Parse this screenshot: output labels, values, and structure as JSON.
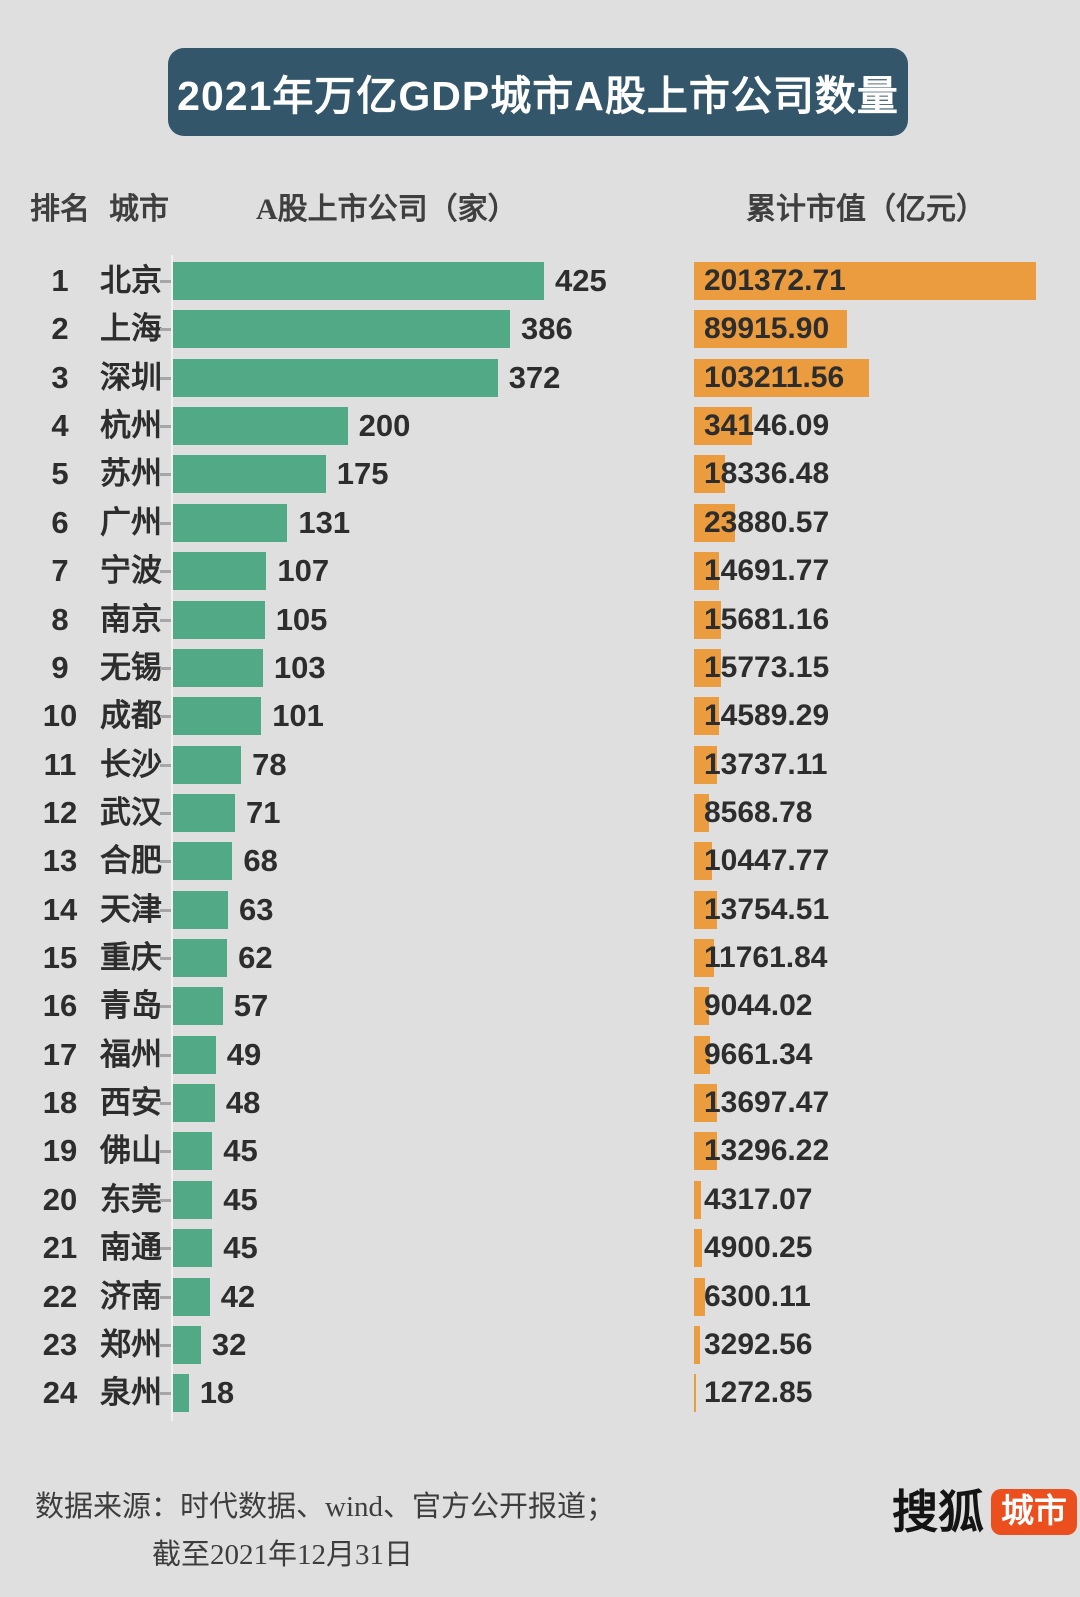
{
  "title": "2021年万亿GDP城市A股上市公司数量",
  "columns": {
    "rank": "排名",
    "city": "城市",
    "companies": "A股上市公司（家）",
    "market_value": "累计市值（亿元）"
  },
  "rows": [
    {
      "rank": 1,
      "city": "北京",
      "companies": 425,
      "market_value": "201372.71"
    },
    {
      "rank": 2,
      "city": "上海",
      "companies": 386,
      "market_value": "89915.90"
    },
    {
      "rank": 3,
      "city": "深圳",
      "companies": 372,
      "market_value": "103211.56"
    },
    {
      "rank": 4,
      "city": "杭州",
      "companies": 200,
      "market_value": "34146.09"
    },
    {
      "rank": 5,
      "city": "苏州",
      "companies": 175,
      "market_value": "18336.48"
    },
    {
      "rank": 6,
      "city": "广州",
      "companies": 131,
      "market_value": "23880.57"
    },
    {
      "rank": 7,
      "city": "宁波",
      "companies": 107,
      "market_value": "14691.77"
    },
    {
      "rank": 8,
      "city": "南京",
      "companies": 105,
      "market_value": "15681.16"
    },
    {
      "rank": 9,
      "city": "无锡",
      "companies": 103,
      "market_value": "15773.15"
    },
    {
      "rank": 10,
      "city": "成都",
      "companies": 101,
      "market_value": "14589.29"
    },
    {
      "rank": 11,
      "city": "长沙",
      "companies": 78,
      "market_value": "13737.11"
    },
    {
      "rank": 12,
      "city": "武汉",
      "companies": 71,
      "market_value": "8568.78"
    },
    {
      "rank": 13,
      "city": "合肥",
      "companies": 68,
      "market_value": "10447.77"
    },
    {
      "rank": 14,
      "city": "天津",
      "companies": 63,
      "market_value": "13754.51"
    },
    {
      "rank": 15,
      "city": "重庆",
      "companies": 62,
      "market_value": "11761.84"
    },
    {
      "rank": 16,
      "city": "青岛",
      "companies": 57,
      "market_value": "9044.02"
    },
    {
      "rank": 17,
      "city": "福州",
      "companies": 49,
      "market_value": "9661.34"
    },
    {
      "rank": 18,
      "city": "西安",
      "companies": 48,
      "market_value": "13697.47"
    },
    {
      "rank": 19,
      "city": "佛山",
      "companies": 45,
      "market_value": "13296.22"
    },
    {
      "rank": 20,
      "city": "东莞",
      "companies": 45,
      "market_value": "4317.07"
    },
    {
      "rank": 21,
      "city": "南通",
      "companies": 45,
      "market_value": "4900.25"
    },
    {
      "rank": 22,
      "city": "济南",
      "companies": 42,
      "market_value": "6300.11"
    },
    {
      "rank": 23,
      "city": "郑州",
      "companies": 32,
      "market_value": "3292.56"
    },
    {
      "rank": 24,
      "city": "泉州",
      "companies": 18,
      "market_value": "1272.85"
    }
  ],
  "footer": {
    "source_line1": "数据来源：时代数据、wind、官方公开报道；",
    "source_line2": "截至2021年12月31日",
    "logo_text": "搜狐",
    "logo_badge": "城市"
  },
  "colors": {
    "background": "#dfdfdf",
    "title_banner": "#33566b",
    "companies_bar": "#52a985",
    "market_value_bar": "#eb9c3e",
    "logo_badge": "#ec4f1e",
    "text_dark": "#2d2d2d"
  },
  "chart_data": {
    "type": "bar",
    "orientation": "horizontal",
    "title": "2021年万亿GDP城市A股上市公司数量",
    "categories": [
      "北京",
      "上海",
      "深圳",
      "杭州",
      "苏州",
      "广州",
      "宁波",
      "南京",
      "无锡",
      "成都",
      "长沙",
      "武汉",
      "合肥",
      "天津",
      "重庆",
      "青岛",
      "福州",
      "西安",
      "佛山",
      "东莞",
      "南通",
      "济南",
      "郑州",
      "泉州"
    ],
    "series": [
      {
        "name": "A股上市公司（家）",
        "color": "#52a985",
        "values": [
          425,
          386,
          372,
          200,
          175,
          131,
          107,
          105,
          103,
          101,
          78,
          71,
          68,
          63,
          62,
          57,
          49,
          48,
          45,
          45,
          45,
          42,
          32,
          18
        ],
        "xlim": [
          0,
          425
        ]
      },
      {
        "name": "累计市值（亿元）",
        "color": "#eb9c3e",
        "values": [
          201372.71,
          89915.9,
          103211.56,
          34146.09,
          18336.48,
          23880.57,
          14691.77,
          15681.16,
          15773.15,
          14589.29,
          13737.11,
          8568.78,
          10447.77,
          13754.51,
          11761.84,
          9044.02,
          9661.34,
          13697.47,
          13296.22,
          4317.07,
          4900.25,
          6300.11,
          3292.56,
          1272.85
        ],
        "xlim": [
          0,
          201372.71
        ]
      }
    ],
    "grid": false,
    "legend_position": "none",
    "value_labels": true,
    "source": "时代数据、wind、官方公开报道；截至2021年12月31日"
  }
}
